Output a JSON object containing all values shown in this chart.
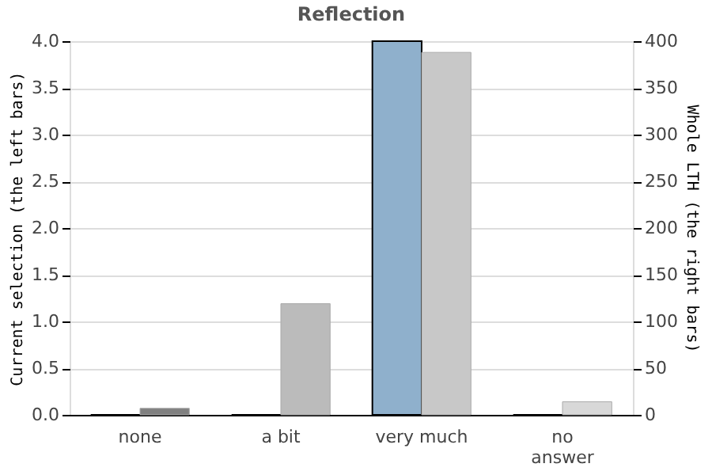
{
  "chart_data": {
    "type": "bar",
    "title": "Reflection",
    "ylabel": "Current selection (the left bars)",
    "y2label": "Whole LTH (the right bars)",
    "categories": [
      "none",
      "a bit",
      "very much",
      "no answer"
    ],
    "series": [
      {
        "values": [
          0,
          0,
          4.0,
          0
        ],
        "color": "#8fb0cc"
      },
      {
        "values": [
          7,
          119,
          388,
          14
        ],
        "colors": [
          "#808080",
          "#bbbbbb",
          "#c8c8c8",
          "#d8d8d8"
        ],
        "axis": "y2"
      }
    ],
    "ylim": [
      0,
      4
    ],
    "yticks": [
      {
        "value": 0,
        "label": "0.0"
      },
      0.5,
      {
        "value": 1,
        "label": "1.0"
      },
      1.5,
      {
        "value": 2,
        "label": "2.0"
      },
      2.5,
      {
        "value": 3,
        "label": "3.0"
      },
      3.5,
      {
        "value": 4,
        "label": "4.0"
      }
    ],
    "y2lim": [
      0,
      400
    ],
    "y2ticks": [
      0,
      50,
      100,
      150,
      200,
      250,
      300,
      350,
      400
    ],
    "grid": "y"
  }
}
